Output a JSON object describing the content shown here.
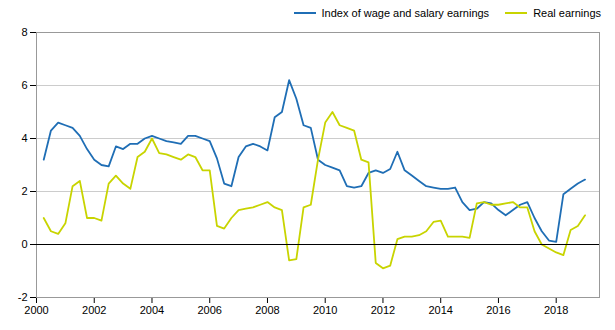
{
  "chart_data": {
    "type": "line",
    "xlim": [
      2000,
      2019.5
    ],
    "ylim": [
      -2,
      8
    ],
    "xticks": [
      2000,
      2002,
      2004,
      2006,
      2008,
      2010,
      2012,
      2014,
      2016,
      2018
    ],
    "yticks": [
      -2,
      0,
      2,
      4,
      6,
      8
    ],
    "grid": "y",
    "legend": "upper right",
    "x": [
      2000.25,
      2000.5,
      2000.75,
      2001.0,
      2001.25,
      2001.5,
      2001.75,
      2002.0,
      2002.25,
      2002.5,
      2002.75,
      2003.0,
      2003.25,
      2003.5,
      2003.75,
      2004.0,
      2004.25,
      2004.5,
      2004.75,
      2005.0,
      2005.25,
      2005.5,
      2005.75,
      2006.0,
      2006.25,
      2006.5,
      2006.75,
      2007.0,
      2007.25,
      2007.5,
      2007.75,
      2008.0,
      2008.25,
      2008.5,
      2008.75,
      2009.0,
      2009.25,
      2009.5,
      2009.75,
      2010.0,
      2010.25,
      2010.5,
      2010.75,
      2011.0,
      2011.25,
      2011.5,
      2011.75,
      2012.0,
      2012.25,
      2012.5,
      2012.75,
      2013.0,
      2013.25,
      2013.5,
      2013.75,
      2014.0,
      2014.25,
      2014.5,
      2014.75,
      2015.0,
      2015.25,
      2015.5,
      2015.75,
      2016.0,
      2016.25,
      2016.5,
      2016.75,
      2017.0,
      2017.25,
      2017.5,
      2017.75,
      2018.0,
      2018.25,
      2018.5,
      2018.75,
      2019.0
    ],
    "series": [
      {
        "name": "Index of wage and salary earnings",
        "color": "#1f6eb5",
        "values": [
          3.2,
          4.3,
          4.6,
          4.5,
          4.4,
          4.1,
          3.6,
          3.2,
          3.0,
          2.95,
          3.7,
          3.6,
          3.8,
          3.8,
          4.0,
          4.1,
          4.0,
          3.9,
          3.85,
          3.8,
          4.1,
          4.1,
          4.0,
          3.9,
          3.25,
          2.3,
          2.2,
          3.3,
          3.7,
          3.8,
          3.7,
          3.55,
          4.8,
          5.0,
          6.2,
          5.5,
          4.5,
          4.4,
          3.2,
          3.0,
          2.9,
          2.8,
          2.2,
          2.15,
          2.2,
          2.7,
          2.8,
          2.7,
          2.85,
          3.5,
          2.8,
          2.6,
          2.4,
          2.2,
          2.15,
          2.1,
          2.1,
          2.15,
          1.6,
          1.3,
          1.35,
          1.6,
          1.55,
          1.3,
          1.1,
          1.3,
          1.5,
          1.6,
          1.0,
          0.5,
          0.15,
          0.1,
          1.9,
          2.1,
          2.3,
          2.45
        ]
      },
      {
        "name": "Real earnings",
        "color": "#c8d400",
        "values": [
          1.0,
          0.5,
          0.4,
          0.8,
          2.2,
          2.4,
          1.0,
          1.0,
          0.9,
          2.3,
          2.6,
          2.3,
          2.1,
          3.3,
          3.5,
          4.0,
          3.45,
          3.4,
          3.3,
          3.2,
          3.4,
          3.3,
          2.8,
          2.8,
          0.7,
          0.6,
          1.0,
          1.3,
          1.35,
          1.4,
          1.5,
          1.6,
          1.4,
          1.3,
          -0.6,
          -0.55,
          1.4,
          1.5,
          3.2,
          4.6,
          5.0,
          4.5,
          4.4,
          4.3,
          3.2,
          3.1,
          -0.7,
          -0.9,
          -0.8,
          0.2,
          0.3,
          0.3,
          0.35,
          0.5,
          0.85,
          0.9,
          0.3,
          0.3,
          0.3,
          0.25,
          1.55,
          1.6,
          1.5,
          1.5,
          1.55,
          1.6,
          1.4,
          1.4,
          0.5,
          0.0,
          -0.15,
          -0.3,
          -0.4,
          0.55,
          0.7,
          1.1
        ]
      }
    ]
  }
}
